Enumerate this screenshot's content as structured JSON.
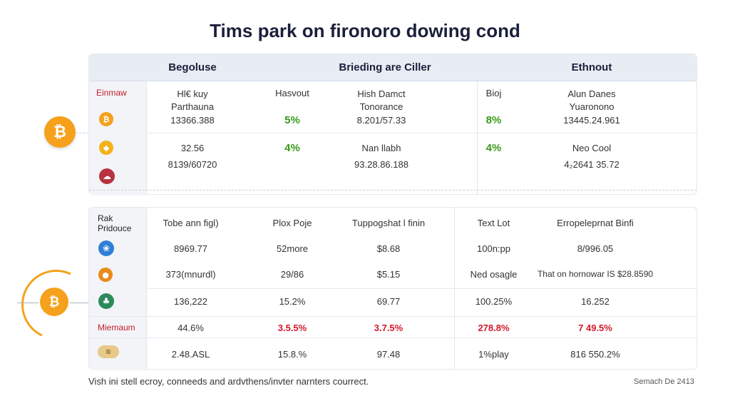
{
  "title": "Tims park on fironoro dowing cond",
  "panel1": {
    "headers": [
      "Begoluse",
      "Briedìng are Ciller",
      "Ethnout"
    ],
    "row_label": "Einmaw",
    "row1": {
      "c1": "Hl€ kuy\nParthauna",
      "c2": "Hasvout",
      "c3": "Hish Damct\nTonorance",
      "c4": "Bioj",
      "c5": "Alun Danes\nYuaronono"
    },
    "row2": {
      "c1": "13366.388",
      "c2": "5%",
      "c3": "8.201/57.33",
      "c4": "8%",
      "c5": "13445.24.961"
    },
    "row3": {
      "c1": "32.56",
      "c2": "4%",
      "c3": "Nan llabh",
      "c4": "4%",
      "c5": "Neo Cool"
    },
    "row4": {
      "c1": "8139/60720",
      "c3": "93.28.86.188",
      "c5": "4₂2641 35.72"
    }
  },
  "panel2": {
    "row_label": "Rak\nPridouce",
    "headers": [
      "Tobe ann figl)",
      "Plox Poje",
      "Tuppogshat l finin",
      "Text Lot",
      "Erropeleprnat Binfi"
    ],
    "rows": [
      [
        "8969.77",
        "52more",
        "$8.68",
        "100n:pp",
        "8/996.05"
      ],
      [
        "373(mnurdl)",
        "29/86",
        "$5.15",
        "Ned osagle",
        "That on hornowar IS $28.8590"
      ],
      [
        "136,222",
        "15.2%",
        "69.77",
        "100.25%",
        "16.252"
      ],
      [
        "44.6%",
        "3.5.5%",
        "3.7.5%",
        "278.8%",
        "7 49.5%"
      ],
      [
        "2.48.ASL",
        "15.8.%",
        "97.48",
        "1%play",
        "816 550.2%"
      ]
    ],
    "red_row_label": "Miemaum"
  },
  "footer_left": "Vish ini stell ecroy, conneeds and ardvthens/invter narnters courrect.",
  "footer_right": "Semach De 2413",
  "colors": {
    "accent_orange": "#f5a11c",
    "positive_green": "#3a9a1c",
    "negative_red": "#d21a2a",
    "header_bg": "#e8edf4"
  },
  "icons": {
    "bitcoin": "bitcoin-icon",
    "coin": "coin-icon",
    "cloud": "cloud-icon",
    "leaf": "leaf-icon",
    "bread": "bread-icon"
  }
}
